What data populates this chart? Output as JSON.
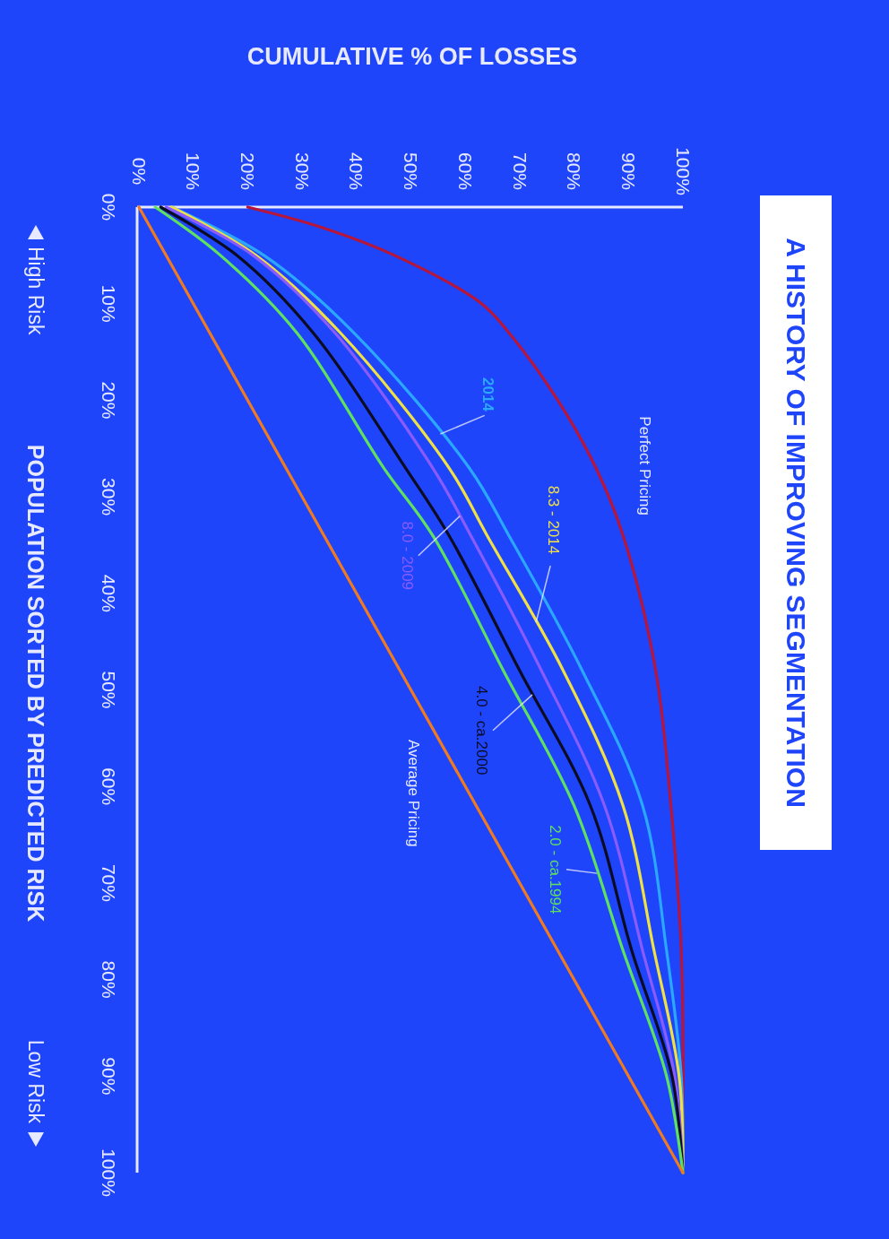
{
  "chart_data": {
    "type": "line",
    "title": "A HISTORY OF IMPROVING SEGMENTATION",
    "xlabel": "CUMULATIVE % OF LOSSES",
    "ylabel": "POPULATION SORTED BY PREDICTED RISK",
    "annotations": [
      "High Risk",
      "Low Risk"
    ],
    "xlim": [
      0,
      100
    ],
    "ylim": [
      100,
      0
    ],
    "xticks": [
      {
        "value": 0,
        "label": "0%"
      },
      {
        "value": 10,
        "label": "10%"
      },
      {
        "value": 20,
        "label": "20%"
      },
      {
        "value": 30,
        "label": "30%"
      },
      {
        "value": 40,
        "label": "40%"
      },
      {
        "value": 50,
        "label": "50%"
      },
      {
        "value": 60,
        "label": "60%"
      },
      {
        "value": 70,
        "label": "70%"
      },
      {
        "value": 80,
        "label": "80%"
      },
      {
        "value": 90,
        "label": "90%"
      },
      {
        "value": 100,
        "label": "100%"
      }
    ],
    "yticks": [
      {
        "value": 0,
        "label": "0%"
      },
      {
        "value": 10,
        "label": "10%"
      },
      {
        "value": 20,
        "label": "20%"
      },
      {
        "value": 30,
        "label": "30%"
      },
      {
        "value": 40,
        "label": "40%"
      },
      {
        "value": 50,
        "label": "50%"
      },
      {
        "value": 60,
        "label": "60%"
      },
      {
        "value": 70,
        "label": "70%"
      },
      {
        "value": 80,
        "label": "80%"
      },
      {
        "value": 90,
        "label": "90%"
      },
      {
        "value": 100,
        "label": "100%"
      }
    ],
    "grid": false,
    "legend": false,
    "series": [
      {
        "name": "Perfect Pricing",
        "color": "#b5163a",
        "x": [
          20,
          33,
          47,
          63,
          68,
          77,
          84,
          89,
          95,
          97.8,
          99.7,
          100
        ],
        "values": [
          0,
          2,
          5,
          10,
          13,
          20,
          27,
          34,
          48,
          62,
          77,
          100
        ]
      },
      {
        "name": "2014",
        "color": "#2aa8ff",
        "x": [
          6,
          23,
          39.5,
          60.7,
          68,
          81.5,
          92.6,
          97,
          99.7,
          100
        ],
        "values": [
          0,
          5,
          13,
          27,
          34,
          48,
          62,
          77,
          90,
          100
        ]
      },
      {
        "name": "8.3 - 2014",
        "color": "#efe046",
        "x": [
          6,
          21.5,
          37,
          57,
          64,
          78,
          89,
          94.7,
          99.3,
          100
        ],
        "values": [
          0,
          5,
          13,
          27,
          34,
          48,
          62,
          77,
          90,
          100
        ]
      },
      {
        "name": "8.0 - 2009",
        "color": "#8a5cff",
        "x": [
          5,
          21,
          36,
          54,
          61,
          74,
          85.6,
          92.6,
          98.5,
          100
        ],
        "values": [
          0,
          5,
          13,
          27,
          34,
          48,
          62,
          77,
          90,
          100
        ]
      },
      {
        "name": "4.0 - ca.2000",
        "color": "#0b0b22",
        "x": [
          4,
          18,
          32,
          49,
          57,
          70,
          83,
          90.6,
          98,
          100
        ],
        "values": [
          0,
          5,
          13,
          27,
          34,
          48,
          62,
          77,
          90,
          100
        ]
      },
      {
        "name": "2.0 - ca.1994",
        "color": "#5fe060",
        "x": [
          3,
          15,
          29,
          45,
          54,
          67,
          80,
          89,
          97,
          100
        ],
        "values": [
          0,
          5,
          13,
          27,
          34,
          48,
          62,
          77,
          90,
          100
        ]
      },
      {
        "name": "Average Pricing",
        "color": "#f07a20",
        "x": [
          0,
          100
        ],
        "values": [
          0,
          100
        ]
      }
    ]
  }
}
